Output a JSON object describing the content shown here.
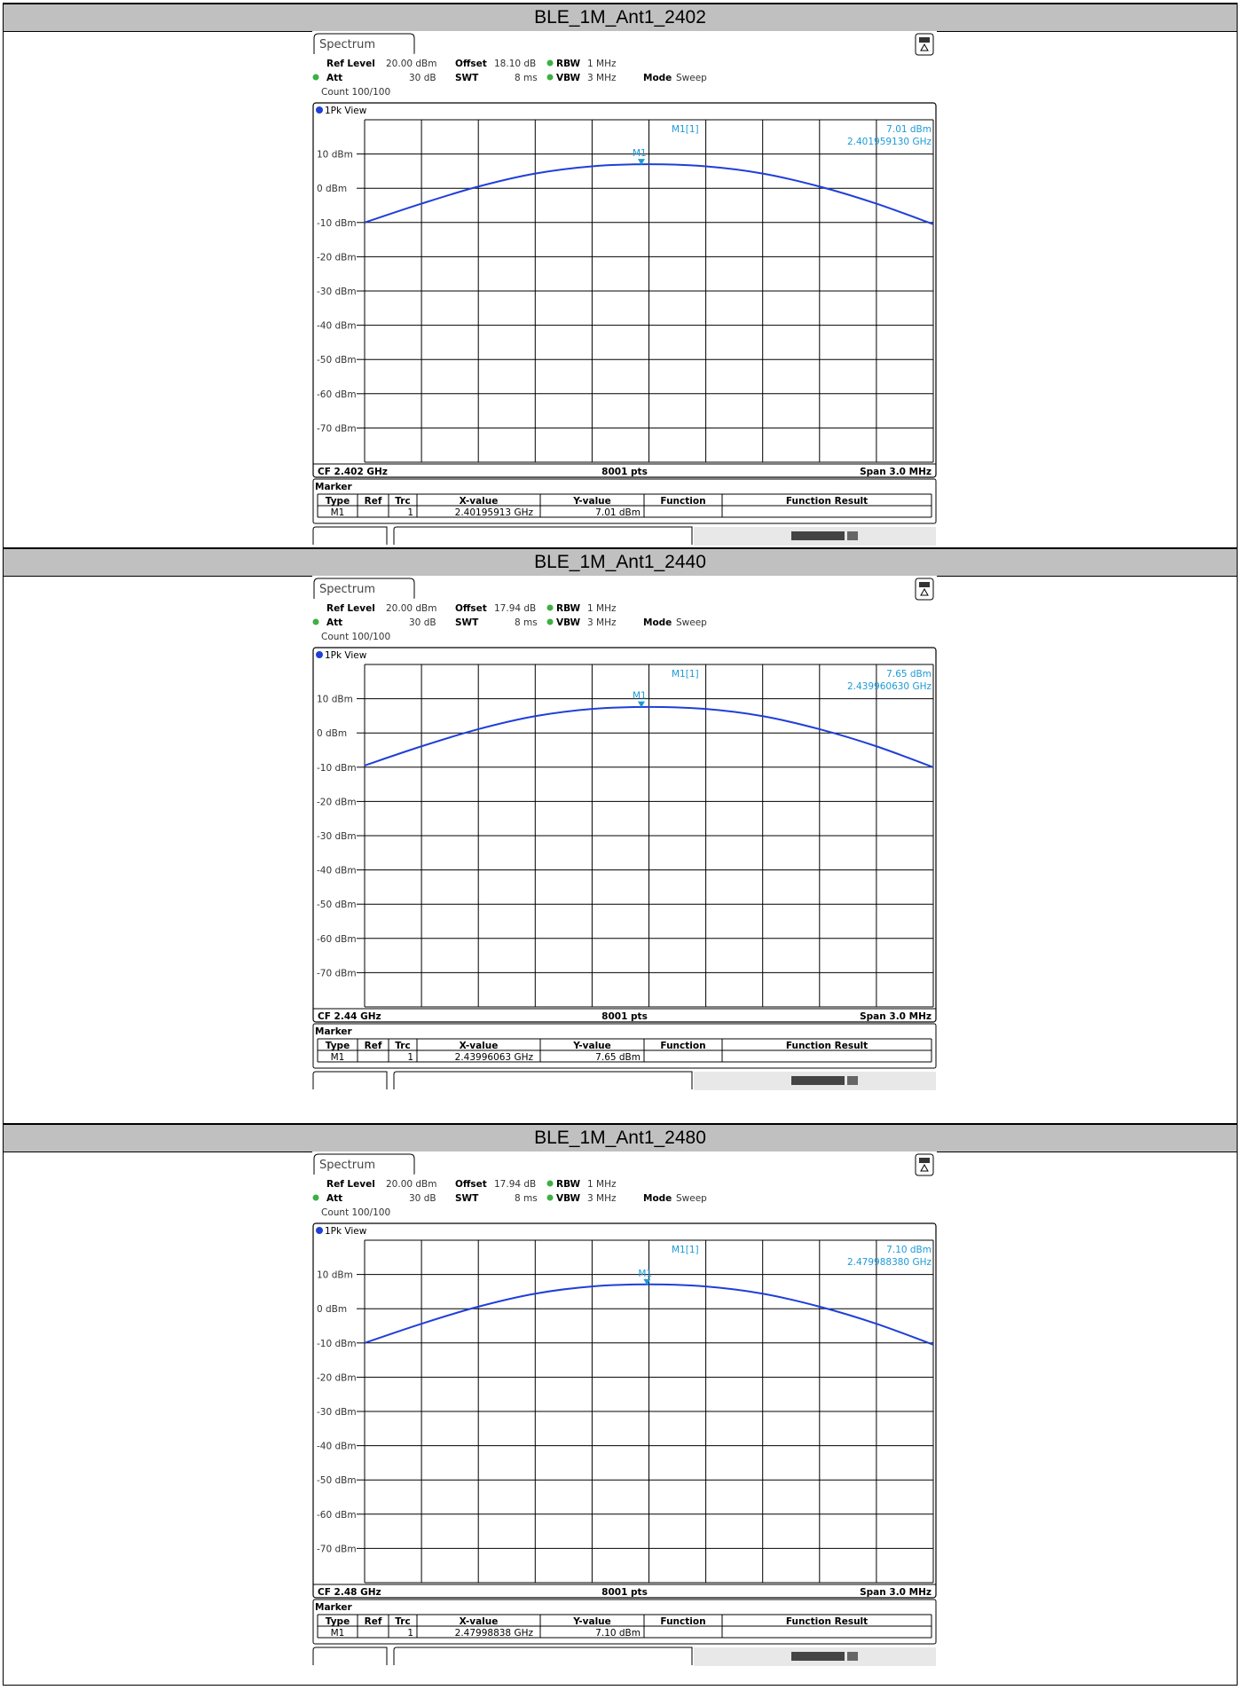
{
  "panels": [
    {
      "title": "BLE_1M_Ant1_2402",
      "tab": "Spectrum",
      "ref_level_label": "Ref Level",
      "ref_level": "20.00 dBm",
      "offset_label": "Offset",
      "offset": "18.10 dB",
      "rbw_label": "RBW",
      "rbw": "1 MHz",
      "att_label": "Att",
      "att": "30 dB",
      "swt_label": "SWT",
      "swt": "8 ms",
      "vbw_label": "VBW",
      "vbw": "3 MHz",
      "mode_label": "Mode",
      "mode": "Sweep",
      "count": "Count 100/100",
      "view": "1Pk View",
      "marker_readout_label": "M1[1]",
      "marker_readout_value": "7.01 dBm",
      "marker_readout_freq": "2.401959130 GHz",
      "marker_tag": "M1",
      "cf": "CF 2.402 GHz",
      "pts": "8001 pts",
      "span": "Span 3.0 MHz",
      "y_ticks": [
        "10 dBm",
        "0 dBm",
        "-10 dBm",
        "-20 dBm",
        "-30 dBm",
        "-40 dBm",
        "-50 dBm",
        "-60 dBm",
        "-70 dBm"
      ],
      "marker_table": {
        "title": "Marker",
        "headers": [
          "Type",
          "Ref",
          "Trc",
          "X-value",
          "Y-value",
          "Function",
          "Function Result"
        ],
        "row": [
          "M1",
          "",
          "1",
          "2.40195913 GHz",
          "7.01 dBm",
          "",
          ""
        ]
      },
      "chart_data": {
        "type": "line",
        "ylim": [
          -80,
          20
        ],
        "xlim_mhz": [
          -1.5,
          1.5
        ],
        "x_offset_mhz": [
          -1.5,
          -1.2,
          -0.9,
          -0.6,
          -0.3,
          0.0,
          0.3,
          0.6,
          0.9,
          1.2,
          1.5
        ],
        "series": [
          {
            "values": [
              -10.0,
              -4.5,
              0.5,
              4.3,
              6.4,
              7.0,
              6.4,
              4.3,
              0.5,
              -4.5,
              -10.5
            ]
          }
        ],
        "marker": {
          "x_offset_mhz": -0.04,
          "y": 7.01
        }
      }
    },
    {
      "title": "BLE_1M_Ant1_2440",
      "tab": "Spectrum",
      "ref_level_label": "Ref Level",
      "ref_level": "20.00 dBm",
      "offset_label": "Offset",
      "offset": "17.94 dB",
      "rbw_label": "RBW",
      "rbw": "1 MHz",
      "att_label": "Att",
      "att": "30 dB",
      "swt_label": "SWT",
      "swt": "8 ms",
      "vbw_label": "VBW",
      "vbw": "3 MHz",
      "mode_label": "Mode",
      "mode": "Sweep",
      "count": "Count 100/100",
      "view": "1Pk View",
      "marker_readout_label": "M1[1]",
      "marker_readout_value": "7.65 dBm",
      "marker_readout_freq": "2.439960630 GHz",
      "marker_tag": "M1",
      "cf": "CF 2.44 GHz",
      "pts": "8001 pts",
      "span": "Span 3.0 MHz",
      "y_ticks": [
        "10 dBm",
        "0 dBm",
        "-10 dBm",
        "-20 dBm",
        "-30 dBm",
        "-40 dBm",
        "-50 dBm",
        "-60 dBm",
        "-70 dBm"
      ],
      "marker_table": {
        "title": "Marker",
        "headers": [
          "Type",
          "Ref",
          "Trc",
          "X-value",
          "Y-value",
          "Function",
          "Function Result"
        ],
        "row": [
          "M1",
          "",
          "1",
          "2.43996063 GHz",
          "7.65 dBm",
          "",
          ""
        ]
      },
      "chart_data": {
        "type": "line",
        "ylim": [
          -80,
          20
        ],
        "xlim_mhz": [
          -1.5,
          1.5
        ],
        "x_offset_mhz": [
          -1.5,
          -1.2,
          -0.9,
          -0.6,
          -0.3,
          0.0,
          0.3,
          0.6,
          0.9,
          1.2,
          1.5
        ],
        "series": [
          {
            "values": [
              -9.5,
              -3.9,
              1.1,
              4.9,
              7.0,
              7.6,
              7.0,
              4.9,
              1.1,
              -3.9,
              -10.0
            ]
          }
        ],
        "marker": {
          "x_offset_mhz": -0.04,
          "y": 7.65
        }
      }
    },
    {
      "title": "BLE_1M_Ant1_2480",
      "tab": "Spectrum",
      "ref_level_label": "Ref Level",
      "ref_level": "20.00 dBm",
      "offset_label": "Offset",
      "offset": "17.94 dB",
      "rbw_label": "RBW",
      "rbw": "1 MHz",
      "att_label": "Att",
      "att": "30 dB",
      "swt_label": "SWT",
      "swt": "8 ms",
      "vbw_label": "VBW",
      "vbw": "3 MHz",
      "mode_label": "Mode",
      "mode": "Sweep",
      "count": "Count 100/100",
      "view": "1Pk View",
      "marker_readout_label": "M1[1]",
      "marker_readout_value": "7.10 dBm",
      "marker_readout_freq": "2.479988380 GHz",
      "marker_tag": "M1",
      "cf": "CF 2.48 GHz",
      "pts": "8001 pts",
      "span": "Span 3.0 MHz",
      "y_ticks": [
        "10 dBm",
        "0 dBm",
        "-10 dBm",
        "-20 dBm",
        "-30 dBm",
        "-40 dBm",
        "-50 dBm",
        "-60 dBm",
        "-70 dBm"
      ],
      "marker_table": {
        "title": "Marker",
        "headers": [
          "Type",
          "Ref",
          "Trc",
          "X-value",
          "Y-value",
          "Function",
          "Function Result"
        ],
        "row": [
          "M1",
          "",
          "1",
          "2.47998838 GHz",
          "7.10 dBm",
          "",
          ""
        ]
      },
      "chart_data": {
        "type": "line",
        "ylim": [
          -80,
          20
        ],
        "xlim_mhz": [
          -1.5,
          1.5
        ],
        "x_offset_mhz": [
          -1.5,
          -1.2,
          -0.9,
          -0.6,
          -0.3,
          0.0,
          0.3,
          0.6,
          0.9,
          1.2,
          1.5
        ],
        "series": [
          {
            "values": [
              -10.0,
              -4.4,
              0.6,
              4.4,
              6.5,
              7.1,
              6.5,
              4.4,
              0.6,
              -4.4,
              -10.5
            ]
          }
        ],
        "marker": {
          "x_offset_mhz": -0.01,
          "y": 7.1
        }
      }
    }
  ],
  "colors": {
    "trace": "#1f3fd8",
    "marker_text": "#1e9ad6",
    "grid": "#000000",
    "header_bg": "#c0c0c0",
    "led_green": "#3cb043"
  }
}
